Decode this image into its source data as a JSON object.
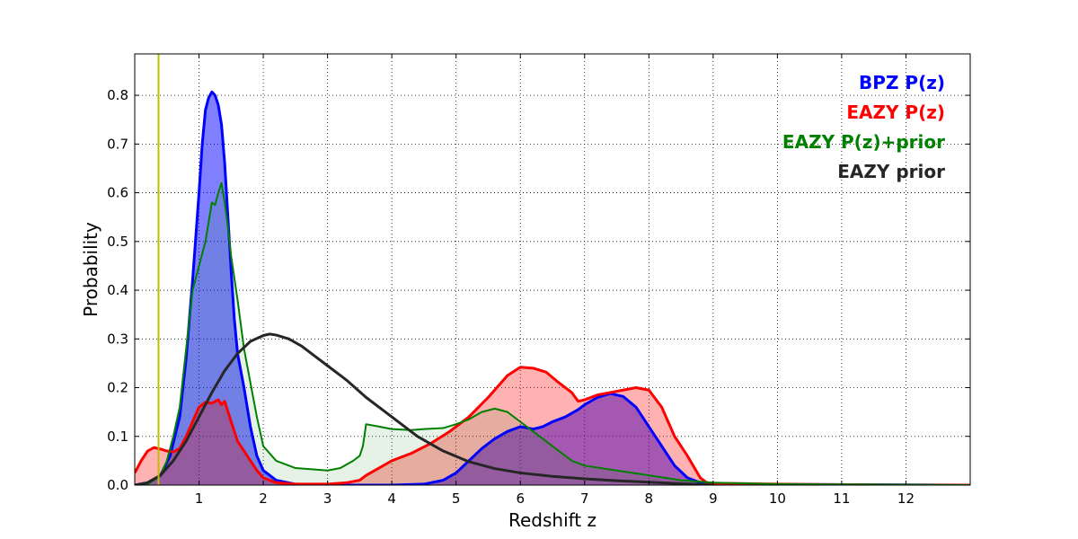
{
  "chart_data": {
    "type": "area",
    "title": "",
    "xlabel": "Redshift z",
    "ylabel": "Probability",
    "xlim": [
      0,
      13
    ],
    "ylim": [
      0,
      0.885
    ],
    "xticks": [
      1,
      2,
      3,
      4,
      5,
      6,
      7,
      8,
      9,
      10,
      11,
      12
    ],
    "yticks": [
      0.0,
      0.1,
      0.2,
      0.3,
      0.4,
      0.5,
      0.6,
      0.7,
      0.8
    ],
    "xtick_labels": [
      "1",
      "2",
      "3",
      "4",
      "5",
      "6",
      "7",
      "8",
      "9",
      "10",
      "11",
      "12"
    ],
    "ytick_labels": [
      "0.0",
      "0.1",
      "0.2",
      "0.3",
      "0.4",
      "0.5",
      "0.6",
      "0.7",
      "0.8"
    ],
    "grid": true,
    "legend_position": "top-right",
    "vertical_line": {
      "x": 0.37,
      "color": "#bfbf00"
    },
    "series": [
      {
        "name": "BPZ P(z)",
        "color": "#0000ff",
        "fill": true,
        "fill_color": "#0000ff",
        "fill_opacity": 0.5,
        "x": [
          0,
          0.2,
          0.4,
          0.55,
          0.7,
          0.8,
          0.9,
          1.0,
          1.05,
          1.1,
          1.15,
          1.2,
          1.25,
          1.3,
          1.35,
          1.4,
          1.45,
          1.5,
          1.55,
          1.6,
          1.7,
          1.8,
          1.9,
          2.0,
          2.2,
          2.5,
          3.0,
          3.5,
          4.0,
          4.5,
          4.8,
          5.0,
          5.2,
          5.4,
          5.6,
          5.8,
          6.0,
          6.2,
          6.35,
          6.5,
          6.7,
          6.9,
          7.0,
          7.2,
          7.4,
          7.6,
          7.8,
          8.0,
          8.2,
          8.4,
          8.6,
          8.8,
          9.0,
          13.0
        ],
        "y": [
          0.0,
          0.005,
          0.02,
          0.06,
          0.14,
          0.26,
          0.42,
          0.6,
          0.7,
          0.77,
          0.795,
          0.807,
          0.8,
          0.78,
          0.74,
          0.66,
          0.55,
          0.44,
          0.34,
          0.27,
          0.2,
          0.12,
          0.06,
          0.03,
          0.01,
          0.002,
          0.0,
          0.0,
          0.0,
          0.002,
          0.01,
          0.025,
          0.05,
          0.075,
          0.095,
          0.11,
          0.12,
          0.115,
          0.12,
          0.13,
          0.14,
          0.155,
          0.165,
          0.18,
          0.188,
          0.182,
          0.16,
          0.12,
          0.08,
          0.04,
          0.015,
          0.005,
          0.002,
          0.0
        ]
      },
      {
        "name": "EAZY P(z)",
        "color": "#ff0000",
        "fill": true,
        "fill_color": "#ff0000",
        "fill_opacity": 0.3,
        "x": [
          0,
          0.1,
          0.2,
          0.3,
          0.4,
          0.5,
          0.6,
          0.7,
          0.8,
          0.9,
          1.0,
          1.1,
          1.2,
          1.3,
          1.35,
          1.4,
          1.5,
          1.6,
          1.7,
          1.8,
          1.9,
          2.0,
          2.2,
          2.5,
          3.0,
          3.3,
          3.5,
          3.6,
          3.8,
          4.0,
          4.3,
          4.6,
          4.9,
          5.2,
          5.5,
          5.8,
          6.0,
          6.2,
          6.4,
          6.6,
          6.8,
          6.9,
          7.0,
          7.2,
          7.4,
          7.6,
          7.8,
          8.0,
          8.2,
          8.4,
          8.6,
          8.8,
          8.9,
          9.0,
          10.0,
          11.0,
          12.0,
          13.0
        ],
        "y": [
          0.025,
          0.05,
          0.07,
          0.077,
          0.074,
          0.07,
          0.068,
          0.075,
          0.1,
          0.13,
          0.16,
          0.17,
          0.168,
          0.175,
          0.165,
          0.172,
          0.13,
          0.09,
          0.07,
          0.05,
          0.03,
          0.015,
          0.005,
          0.002,
          0.002,
          0.005,
          0.01,
          0.02,
          0.035,
          0.05,
          0.065,
          0.085,
          0.11,
          0.14,
          0.18,
          0.225,
          0.242,
          0.24,
          0.232,
          0.21,
          0.19,
          0.172,
          0.175,
          0.185,
          0.19,
          0.195,
          0.2,
          0.195,
          0.16,
          0.1,
          0.06,
          0.015,
          0.005,
          0.004,
          0.002,
          0.001,
          0.0,
          0.0
        ]
      },
      {
        "name": "EAZY P(z)+prior",
        "color": "#008000",
        "fill": true,
        "fill_color": "#008000",
        "fill_opacity": 0.1,
        "x": [
          0,
          0.2,
          0.3,
          0.4,
          0.5,
          0.6,
          0.7,
          0.8,
          0.9,
          1.0,
          1.1,
          1.2,
          1.25,
          1.3,
          1.35,
          1.4,
          1.45,
          1.5,
          1.6,
          1.7,
          1.8,
          1.9,
          2.0,
          2.2,
          2.5,
          2.8,
          3.0,
          3.2,
          3.4,
          3.5,
          3.55,
          3.6,
          3.8,
          4.0,
          4.3,
          4.5,
          4.8,
          5.0,
          5.2,
          5.4,
          5.6,
          5.8,
          6.0,
          6.2,
          6.4,
          6.6,
          6.8,
          7.0,
          7.5,
          8.0,
          8.5,
          9.0,
          10.0,
          13.0
        ],
        "y": [
          0.0,
          0.002,
          0.01,
          0.02,
          0.05,
          0.1,
          0.16,
          0.28,
          0.4,
          0.45,
          0.5,
          0.58,
          0.575,
          0.6,
          0.62,
          0.58,
          0.53,
          0.47,
          0.38,
          0.28,
          0.21,
          0.14,
          0.08,
          0.05,
          0.035,
          0.032,
          0.03,
          0.035,
          0.05,
          0.06,
          0.08,
          0.125,
          0.12,
          0.115,
          0.113,
          0.115,
          0.117,
          0.125,
          0.135,
          0.15,
          0.157,
          0.15,
          0.13,
          0.11,
          0.09,
          0.07,
          0.05,
          0.04,
          0.03,
          0.02,
          0.01,
          0.005,
          0.002,
          0.0
        ]
      },
      {
        "name": "EAZY prior",
        "color": "#262626",
        "fill": false,
        "x": [
          0,
          0.2,
          0.4,
          0.6,
          0.8,
          1.0,
          1.2,
          1.4,
          1.6,
          1.8,
          2.0,
          2.1,
          2.2,
          2.4,
          2.6,
          2.8,
          3.0,
          3.3,
          3.6,
          4.0,
          4.4,
          4.8,
          5.2,
          5.6,
          6.0,
          6.5,
          7.0,
          7.5,
          8.0,
          8.5,
          9.0
        ],
        "y": [
          0.0,
          0.005,
          0.02,
          0.05,
          0.09,
          0.14,
          0.19,
          0.235,
          0.27,
          0.295,
          0.307,
          0.31,
          0.308,
          0.3,
          0.285,
          0.265,
          0.245,
          0.215,
          0.18,
          0.14,
          0.1,
          0.07,
          0.048,
          0.034,
          0.025,
          0.018,
          0.013,
          0.009,
          0.006,
          0.003,
          0.0
        ]
      }
    ]
  }
}
